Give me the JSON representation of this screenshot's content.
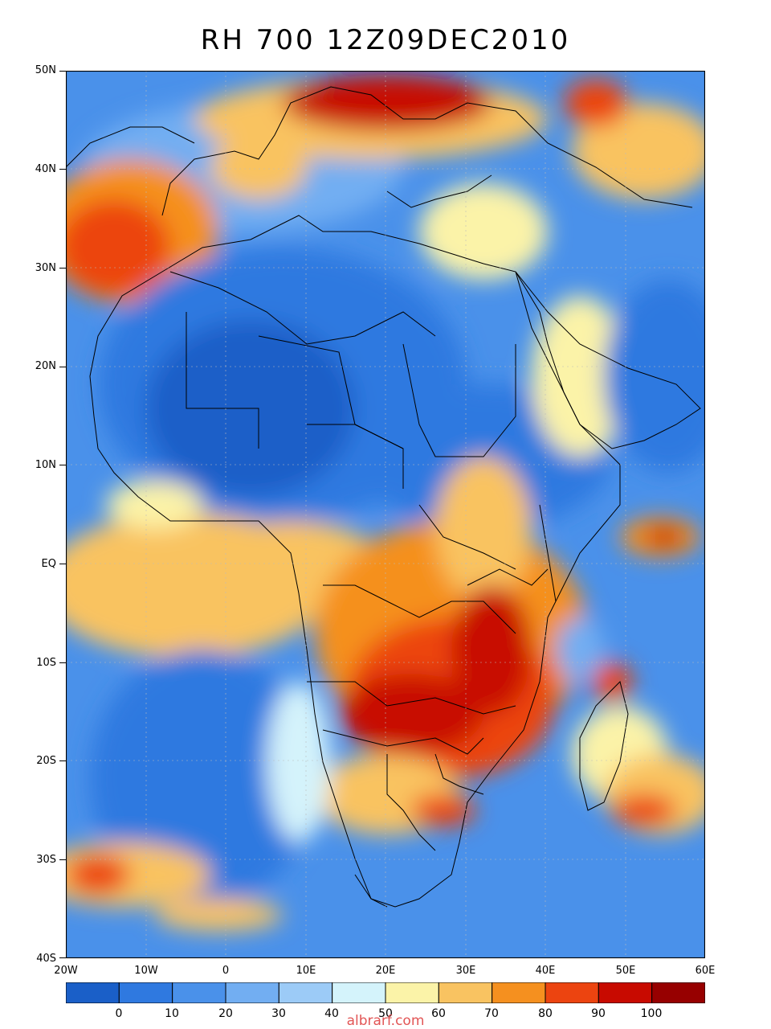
{
  "title": "RH 700 12Z09DEC2010",
  "lat_labels": [
    "50N",
    "40N",
    "30N",
    "20N",
    "10N",
    "EQ",
    "10S",
    "20S",
    "30S",
    "40S"
  ],
  "lon_labels": [
    "20W",
    "10W",
    "0",
    "10E",
    "20E",
    "30E",
    "40E",
    "50E",
    "60E"
  ],
  "colorbar": {
    "labels": [
      "0",
      "10",
      "20",
      "30",
      "40",
      "50",
      "60",
      "70",
      "80",
      "90",
      "100"
    ],
    "colors": [
      "#1a5fc8",
      "#2f79e0",
      "#4a91ea",
      "#72aef2",
      "#9ccbf7",
      "#d4f3fb",
      "#fbf3a8",
      "#f9c361",
      "#f5901f",
      "#ec4410",
      "#c80a00",
      "#970000"
    ]
  },
  "watermark": "albrarf.com"
}
